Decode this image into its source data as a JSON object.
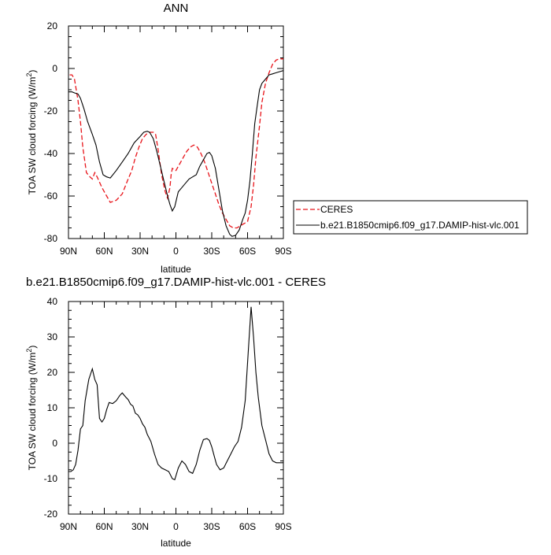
{
  "chart_data": [
    {
      "type": "line",
      "title": "ANN",
      "xlabel": "latitude",
      "ylabel": "TOA SW cloud forcing (W/m",
      "ylabel_sup": "2",
      "ylabel_end": ")",
      "xlim": [
        90,
        -90
      ],
      "ylim": [
        -80,
        20
      ],
      "x_ticks": [
        90,
        60,
        30,
        0,
        -30,
        -60,
        -90
      ],
      "x_tick_labels": [
        "90N",
        "60N",
        "30N",
        "0",
        "30S",
        "60S",
        "90S"
      ],
      "y_ticks": [
        -80,
        -60,
        -40,
        -20,
        0,
        20
      ],
      "y_tick_labels": [
        "-80",
        "-60",
        "-40",
        "-20",
        "0",
        "20"
      ],
      "legend": "right-bottom, outside",
      "series": [
        {
          "name": "CERES",
          "color": "#e8141a",
          "dash": "dashed",
          "x": [
            89,
            87,
            85,
            82,
            80,
            78,
            75,
            72,
            70,
            68,
            66,
            62,
            58,
            55,
            50,
            45,
            40,
            37,
            34,
            31,
            28,
            25,
            22,
            19,
            17,
            15,
            12,
            9,
            7,
            5,
            4,
            3,
            0,
            -1,
            -3,
            -6,
            -9,
            -12,
            -15,
            -18,
            -21,
            -24,
            -27,
            -30,
            -33,
            -36,
            -39,
            -42,
            -45,
            -48,
            -51,
            -54,
            -57,
            -60,
            -63,
            -65,
            -67,
            -70,
            -72,
            -75,
            -78,
            -81,
            -84,
            -87,
            -90
          ],
          "y": [
            -3,
            -3,
            -5,
            -15,
            -25,
            -37,
            -49,
            -51,
            -52,
            -49,
            -51,
            -56,
            -60,
            -63,
            -62,
            -59,
            -52,
            -48,
            -42,
            -37,
            -33,
            -31,
            -30,
            -30,
            -31,
            -38,
            -50,
            -58,
            -61,
            -56,
            -50,
            -47,
            -48,
            -47,
            -45,
            -42,
            -39,
            -37,
            -36,
            -37,
            -40,
            -44,
            -49,
            -54,
            -59,
            -64,
            -68,
            -71,
            -74,
            -75,
            -75,
            -74,
            -73,
            -72,
            -65,
            -55,
            -42,
            -27,
            -16,
            -7,
            -2,
            2,
            4,
            4.5,
            4.5
          ]
        },
        {
          "name": "b.e21.B1850cmip6.f09_g17.DAMIP-hist-vlc.001",
          "color": "#000000",
          "dash": "solid",
          "x": [
            90,
            87,
            85,
            82,
            80,
            77,
            74,
            70,
            67,
            64,
            61,
            58,
            55,
            50,
            45,
            40,
            35,
            30,
            27,
            24,
            22,
            19,
            16,
            13,
            10,
            7,
            5,
            3,
            1,
            -2,
            -5,
            -8,
            -11,
            -14,
            -17,
            -20,
            -22,
            -24,
            -26,
            -28,
            -30,
            -33,
            -36,
            -39,
            -42,
            -45,
            -47,
            -50,
            -53,
            -56,
            -58,
            -60,
            -62,
            -64,
            -66,
            -68,
            -70,
            -72,
            -75,
            -78,
            -81,
            -84,
            -87,
            -90
          ],
          "y": [
            -11,
            -11,
            -11.5,
            -12,
            -14,
            -19,
            -25,
            -31,
            -36,
            -44,
            -50,
            -51,
            -51.5,
            -48,
            -44,
            -40,
            -35,
            -32,
            -30,
            -29.5,
            -30,
            -33,
            -39,
            -46,
            -53,
            -60,
            -64,
            -67,
            -65,
            -58,
            -56,
            -54,
            -52,
            -51,
            -50,
            -46,
            -44,
            -42,
            -40,
            -39.5,
            -41,
            -47,
            -57,
            -67,
            -74,
            -78,
            -79,
            -78.5,
            -76,
            -71,
            -68,
            -62,
            -53,
            -40,
            -26,
            -18,
            -10,
            -7,
            -5,
            -3,
            -2.5,
            -2,
            -1.5,
            -1
          ]
        }
      ]
    },
    {
      "type": "line",
      "title": "b.e21.B1850cmip6.f09_g17.DAMIP-hist-vlc.001 - CERES",
      "xlabel": "latitude",
      "ylabel": "TOA SW cloud forcing (W/m",
      "ylabel_sup": "2",
      "ylabel_end": ")",
      "xlim": [
        90,
        -90
      ],
      "ylim": [
        -20,
        40
      ],
      "x_ticks": [
        90,
        60,
        30,
        0,
        -30,
        -60,
        -90
      ],
      "x_tick_labels": [
        "90N",
        "60N",
        "30N",
        "0",
        "30S",
        "60S",
        "90S"
      ],
      "y_ticks": [
        -20,
        -10,
        0,
        10,
        20,
        30,
        40
      ],
      "y_tick_labels": [
        "-20",
        "-10",
        "0",
        "10",
        "20",
        "30",
        "40"
      ],
      "series": [
        {
          "color": "#000000",
          "dash": "solid",
          "x": [
            90,
            88,
            86,
            84,
            82,
            80,
            78,
            76,
            73,
            70,
            68,
            66,
            64,
            62,
            60,
            58,
            56,
            53,
            50,
            47,
            45,
            42,
            40,
            38,
            36,
            34,
            32,
            30,
            28,
            26,
            24,
            21,
            18,
            15,
            12,
            9,
            6,
            3,
            1,
            -2,
            -5,
            -8,
            -11,
            -14,
            -17,
            -20,
            -23,
            -26,
            -28,
            -30,
            -32,
            -34,
            -37,
            -40,
            -43,
            -46,
            -49,
            -52,
            -55,
            -58,
            -61,
            -63,
            -65,
            -67,
            -69,
            -72,
            -75,
            -78,
            -81,
            -84,
            -87,
            -90
          ],
          "y": [
            -8,
            -8,
            -7.5,
            -6,
            -2,
            4,
            5,
            12,
            18,
            21,
            18,
            16.5,
            7,
            6,
            7,
            9.5,
            11.5,
            11.2,
            12,
            13.5,
            14.2,
            13,
            12.3,
            11,
            10.5,
            8.5,
            8,
            7,
            5.5,
            4.5,
            2.5,
            0.5,
            -3,
            -6,
            -7,
            -7.5,
            -8,
            -10,
            -10.3,
            -7,
            -5,
            -6,
            -8,
            -8.5,
            -6,
            -2,
            1,
            1.3,
            0.8,
            -1,
            -3.5,
            -6,
            -7.5,
            -7,
            -5,
            -3,
            -1,
            0.5,
            4.5,
            12,
            28,
            38.5,
            30,
            20,
            13,
            5,
            1,
            -3,
            -5,
            -5.5,
            -5.5,
            -5.5
          ]
        }
      ]
    }
  ]
}
